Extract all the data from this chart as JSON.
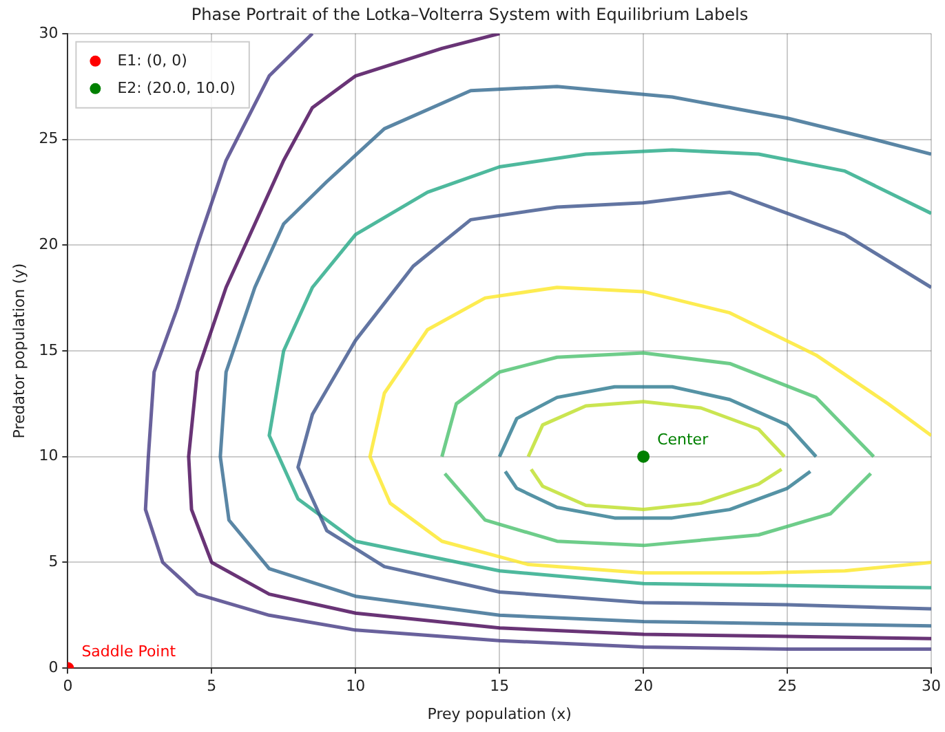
{
  "chart_data": {
    "type": "line",
    "title": "Phase Portrait of the Lotka–Volterra System with Equilibrium Labels",
    "xlabel": "Prey population (x)",
    "ylabel": "Predator population (y)",
    "xlim": [
      0,
      30
    ],
    "ylim": [
      0,
      30
    ],
    "xticks": [
      0,
      5,
      10,
      15,
      20,
      25,
      30
    ],
    "yticks": [
      0,
      5,
      10,
      15,
      20,
      25,
      30
    ],
    "grid": true,
    "legend": "top left",
    "series": [
      {
        "color": "#bddf26",
        "marker": "none",
        "x": [
          16,
          16.5,
          18,
          20,
          22,
          24,
          24.9
        ],
        "values": [
          10,
          11.5,
          12.4,
          12.6,
          12.3,
          11.3,
          10
        ]
      },
      {
        "color": "#bddf26",
        "marker": "none",
        "x": [
          16.1,
          16.5,
          18,
          20,
          22,
          24,
          24.8
        ],
        "values": [
          9.4,
          8.6,
          7.7,
          7.5,
          7.8,
          8.7,
          9.4
        ]
      },
      {
        "color": "#2a788e",
        "marker": "none",
        "x": [
          15,
          15.6,
          17,
          19,
          21,
          23,
          25,
          26
        ],
        "values": [
          10,
          11.8,
          12.8,
          13.3,
          13.3,
          12.7,
          11.5,
          10
        ]
      },
      {
        "color": "#2a788e",
        "marker": "none",
        "x": [
          15.2,
          15.6,
          17,
          19,
          21,
          23,
          25,
          25.8
        ],
        "values": [
          9.3,
          8.5,
          7.6,
          7.1,
          7.1,
          7.5,
          8.5,
          9.3
        ]
      },
      {
        "color": "#4ac16d",
        "marker": "none",
        "x": [
          13,
          13.5,
          15,
          17,
          20,
          23,
          26,
          28
        ],
        "values": [
          10,
          12.5,
          14,
          14.7,
          14.9,
          14.4,
          12.8,
          10
        ]
      },
      {
        "color": "#4ac16d",
        "marker": "none",
        "x": [
          13.1,
          14.5,
          17,
          20,
          24,
          26.5,
          27.9
        ],
        "values": [
          9.2,
          7,
          6,
          5.8,
          6.3,
          7.3,
          9.2
        ]
      },
      {
        "color": "#fde725",
        "marker": "none",
        "x": [
          30,
          27,
          24,
          20,
          16,
          13,
          11.2,
          10.5,
          11,
          12.5,
          14.5,
          17,
          20,
          23,
          26,
          28.5,
          30
        ],
        "values": [
          5,
          4.6,
          4.5,
          4.5,
          4.9,
          6,
          7.8,
          10,
          13,
          16,
          17.5,
          18,
          17.8,
          16.8,
          14.8,
          12.5,
          11
        ]
      },
      {
        "color": "#3b528b",
        "marker": "none",
        "x": [
          30,
          25,
          20,
          15,
          11,
          9,
          8,
          8.5,
          10,
          12,
          14,
          17,
          20,
          23,
          27,
          30
        ],
        "values": [
          2.8,
          3,
          3.1,
          3.6,
          4.8,
          6.5,
          9.5,
          12,
          15.5,
          19,
          21.2,
          21.8,
          22,
          22.5,
          20.5,
          18
        ]
      },
      {
        "color": "#22a884",
        "marker": "none",
        "x": [
          30,
          25,
          20,
          15,
          10,
          8,
          7,
          7.5,
          8.5,
          10,
          12.5,
          15,
          18,
          21,
          24,
          27,
          30
        ],
        "values": [
          3.8,
          3.9,
          4,
          4.6,
          6,
          8,
          11,
          15,
          18,
          20.5,
          22.5,
          23.7,
          24.3,
          24.5,
          24.3,
          23.5,
          21.5
        ]
      },
      {
        "color": "#31688e",
        "marker": "none",
        "x": [
          30,
          25,
          20,
          15,
          10,
          7,
          5.6,
          5.3,
          5.5,
          6.5,
          7.5,
          9,
          11,
          14,
          17,
          21,
          25,
          28,
          30
        ],
        "values": [
          2,
          2.1,
          2.2,
          2.5,
          3.4,
          4.7,
          7,
          10,
          14,
          18,
          21,
          23,
          25.5,
          27.3,
          27.5,
          27,
          26,
          25,
          24.3
        ]
      },
      {
        "color": "#440154",
        "marker": "none",
        "x": [
          30,
          25,
          20,
          15,
          10,
          7,
          5,
          4.3,
          4.2,
          4.5,
          5.5,
          6.5,
          7.5,
          8.5,
          10,
          13,
          15
        ],
        "values": [
          1.4,
          1.5,
          1.6,
          1.9,
          2.6,
          3.5,
          5,
          7.5,
          10,
          14,
          18,
          21,
          24,
          26.5,
          28,
          29.3,
          30
        ]
      },
      {
        "color": "#443983",
        "marker": "none",
        "x": [
          30,
          25,
          20,
          15,
          10,
          7,
          4.5,
          3.3,
          2.7,
          2.8,
          3,
          3.8,
          4.5,
          5.5,
          7,
          8.5
        ],
        "values": [
          0.9,
          0.9,
          1,
          1.3,
          1.8,
          2.5,
          3.5,
          5,
          7.5,
          10,
          14,
          17,
          20,
          24,
          28,
          30
        ]
      },
      {
        "type": "scatter",
        "marker": "circle",
        "name": "E1: (0, 0)",
        "color": "#ff0000",
        "x": [
          0
        ],
        "values": [
          0
        ]
      },
      {
        "type": "scatter",
        "marker": "circle",
        "name": "E2: (20.0, 10.0)",
        "color": "#008000",
        "x": [
          20
        ],
        "values": [
          10
        ]
      }
    ],
    "annotations": [
      {
        "text": "Saddle Point",
        "x": 0,
        "y": 0
      },
      {
        "text": "Center",
        "x": 20,
        "y": 10
      }
    ]
  }
}
